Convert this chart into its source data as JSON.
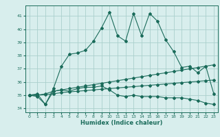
{
  "title": "",
  "xlabel": "Humidex (Indice chaleur)",
  "bg_color": "#d8eeed",
  "grid_color": "#aacfcc",
  "line_color": "#1a6b5a",
  "xlim": [
    -0.5,
    23.5
  ],
  "ylim": [
    33.7,
    41.8
  ],
  "yticks": [
    34,
    35,
    36,
    37,
    38,
    39,
    40,
    41
  ],
  "xticks": [
    0,
    1,
    2,
    3,
    4,
    5,
    6,
    7,
    8,
    9,
    10,
    11,
    12,
    13,
    14,
    15,
    16,
    17,
    18,
    19,
    20,
    21,
    22,
    23
  ],
  "series1": [
    35.0,
    35.1,
    34.3,
    35.5,
    37.2,
    38.1,
    38.2,
    38.4,
    39.1,
    40.1,
    41.3,
    39.5,
    39.1,
    41.2,
    39.5,
    41.2,
    40.6,
    39.2,
    38.3,
    37.1,
    37.2,
    36.7,
    37.2,
    35.1
  ],
  "series2": [
    35.0,
    34.9,
    34.3,
    35.3,
    35.4,
    35.3,
    35.5,
    35.6,
    35.6,
    35.7,
    35.4,
    35.0,
    34.9,
    35.0,
    34.9,
    34.9,
    34.9,
    34.8,
    34.8,
    34.8,
    34.7,
    34.6,
    34.4,
    34.3
  ],
  "series3": [
    35.0,
    35.0,
    35.1,
    35.3,
    35.4,
    35.5,
    35.6,
    35.7,
    35.8,
    35.9,
    36.0,
    36.1,
    36.2,
    36.3,
    36.4,
    36.5,
    36.6,
    36.7,
    36.8,
    36.9,
    37.0,
    37.1,
    37.2,
    37.3
  ],
  "series4": [
    35.0,
    35.0,
    35.05,
    35.1,
    35.2,
    35.25,
    35.3,
    35.35,
    35.4,
    35.45,
    35.5,
    35.55,
    35.6,
    35.65,
    35.7,
    35.75,
    35.8,
    35.85,
    35.9,
    35.95,
    36.0,
    36.05,
    36.1,
    36.15
  ]
}
